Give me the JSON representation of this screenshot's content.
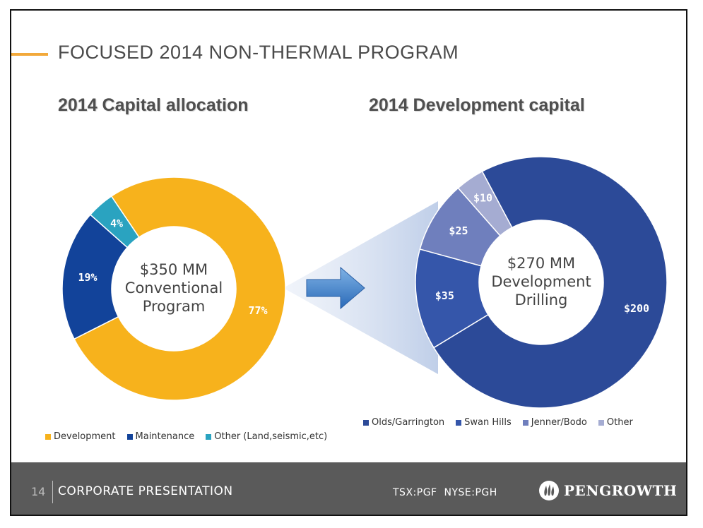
{
  "slide": {
    "title": "FOCUSED 2014 NON-THERMAL PROGRAM",
    "accent_color": "#f2a93b"
  },
  "footer": {
    "page_number": "14",
    "title": "CORPORATE PRESENTATION",
    "tickers": "TSX:PGF  NYSE:PGH",
    "logo_text": "PENGROWTH"
  },
  "chart_data": [
    {
      "type": "pie",
      "variant": "donut",
      "title": "2014 Capital allocation",
      "center_label": [
        "$350 MM",
        "Conventional",
        "Program"
      ],
      "categories": [
        "Development",
        "Maintenance",
        "Other (Land,seismic,etc)"
      ],
      "values": [
        77,
        19,
        4
      ],
      "data_labels": [
        "77%",
        "19%",
        "4%"
      ],
      "colors": [
        "#f7b21c",
        "#12439a",
        "#2aa3c0"
      ],
      "legend": "bottom"
    },
    {
      "type": "pie",
      "variant": "donut",
      "title": "2014 Development capital",
      "center_label": [
        "$270 MM",
        "Development",
        "Drilling"
      ],
      "categories": [
        "Olds/Garrington",
        "Swan Hills",
        "Jenner/Bodo",
        "Other"
      ],
      "values": [
        200,
        35,
        25,
        10
      ],
      "data_labels": [
        "$200",
        "$35",
        "$25",
        "$10"
      ],
      "colors": [
        "#2c4a98",
        "#3556aa",
        "#6f7fbd",
        "#a5acd2"
      ],
      "legend": "bottom"
    }
  ]
}
